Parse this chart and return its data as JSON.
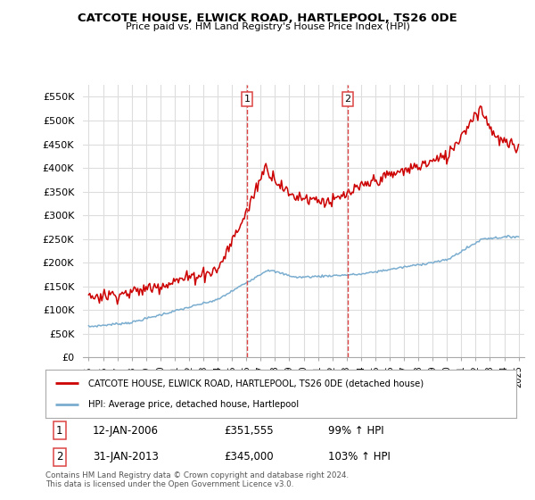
{
  "title": "CATCOTE HOUSE, ELWICK ROAD, HARTLEPOOL, TS26 0DE",
  "subtitle": "Price paid vs. HM Land Registry's House Price Index (HPI)",
  "ylim": [
    0,
    575000
  ],
  "yticks": [
    0,
    50000,
    100000,
    150000,
    200000,
    250000,
    300000,
    350000,
    400000,
    450000,
    500000,
    550000
  ],
  "ytick_labels": [
    "£0",
    "£50K",
    "£100K",
    "£150K",
    "£200K",
    "£250K",
    "£300K",
    "£350K",
    "£400K",
    "£450K",
    "£500K",
    "£550K"
  ],
  "plot_bg_color": "#ffffff",
  "fig_bg_color": "#ffffff",
  "grid_color": "#dddddd",
  "red_color": "#cc0000",
  "blue_color": "#7aadcf",
  "dashed_color": "#dd4444",
  "legend_label_red": "CATCOTE HOUSE, ELWICK ROAD, HARTLEPOOL, TS26 0DE (detached house)",
  "legend_label_blue": "HPI: Average price, detached house, Hartlepool",
  "marker1_date_x": 2006.04,
  "marker2_date_x": 2013.08,
  "marker1_date_str": "12-JAN-2006",
  "marker1_price": "£351,555",
  "marker1_pct": "99% ↑ HPI",
  "marker2_date_str": "31-JAN-2013",
  "marker2_price": "£345,000",
  "marker2_pct": "103% ↑ HPI",
  "footer": "Contains HM Land Registry data © Crown copyright and database right 2024.\nThis data is licensed under the Open Government Licence v3.0.",
  "xlim_left": 1994.6,
  "xlim_right": 2025.4
}
